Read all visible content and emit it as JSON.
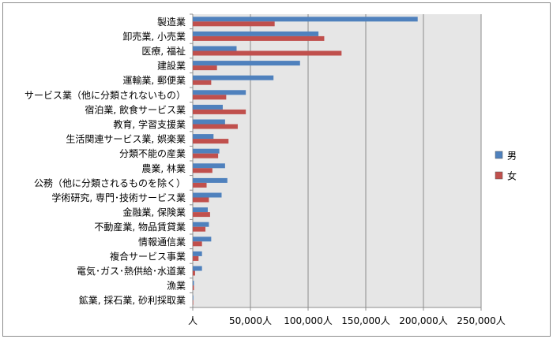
{
  "chart_data": {
    "type": "bar",
    "orientation": "horizontal",
    "categories": [
      "製造業",
      "卸売業, 小売業",
      "医療, 福祉",
      "建設業",
      "運輸業, 郵便業",
      "サービス業（他に分類されないもの）",
      "宿泊業, 飲食サービス業",
      "教育, 学習支援業",
      "生活関連サービス業, 娯楽業",
      "分類不能の産業",
      "農業, 林業",
      "公務（他に分類されるものを除く）",
      "学術研究, 専門･技術サービス業",
      "金融業, 保険業",
      "不動産業, 物品賃貸業",
      "情報通信業",
      "複合サービス事業",
      "電気･ガス･熱供給･水道業",
      "漁業",
      "鉱業, 採石業, 砂利採取業"
    ],
    "series": [
      {
        "name": "男",
        "color": "#4f81bd",
        "values": [
          195000,
          109000,
          38000,
          93000,
          70000,
          46000,
          26000,
          28000,
          18000,
          23000,
          28000,
          30000,
          25000,
          13000,
          14000,
          16000,
          8000,
          8000,
          1000,
          500
        ]
      },
      {
        "name": "女",
        "color": "#c0504d",
        "values": [
          71000,
          114000,
          129000,
          21000,
          16000,
          29000,
          46000,
          39000,
          31000,
          22000,
          17000,
          12000,
          14000,
          15000,
          11000,
          8000,
          5000,
          2000,
          1000,
          300
        ]
      }
    ],
    "x_ticks": [
      "人",
      "50,000人",
      "100,000人",
      "150,000人",
      "200,000人",
      "250,000人"
    ],
    "xlim": [
      0,
      250000
    ],
    "grid": true,
    "plot_background": "#e6e6e6",
    "legend_position": "right"
  }
}
